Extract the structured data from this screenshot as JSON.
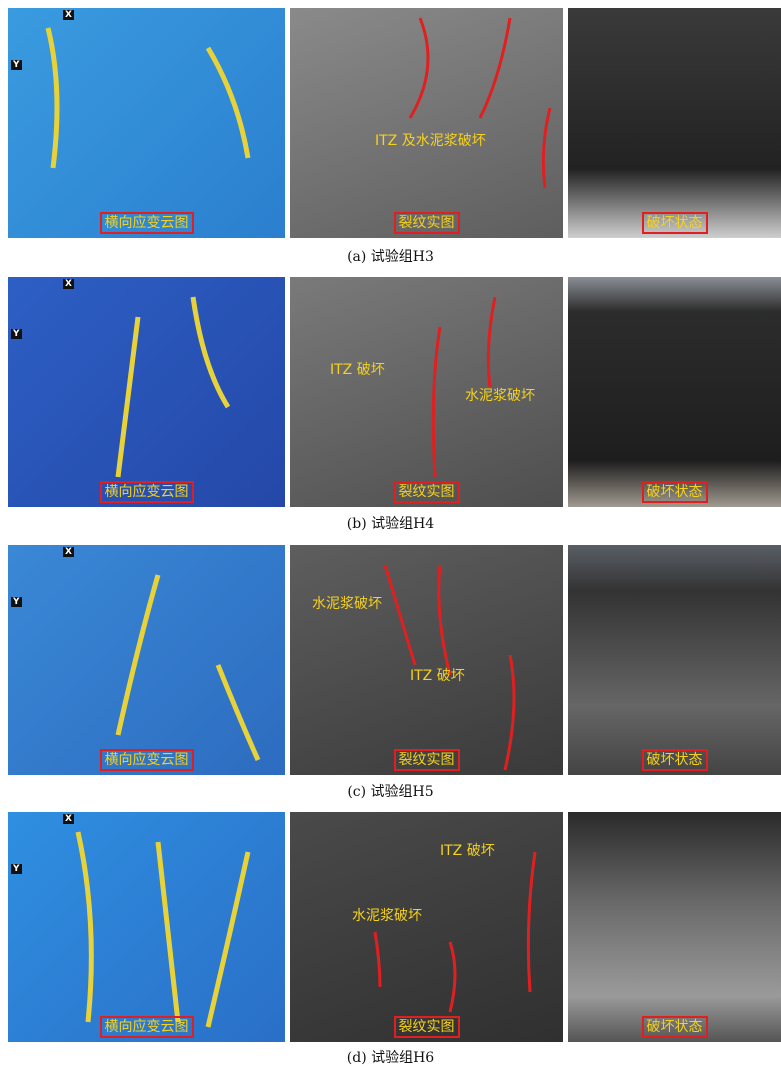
{
  "figure": {
    "rows": [
      {
        "caption": "(a) 试验组H3",
        "panels": [
          {
            "label": "横向应变云图",
            "axes": [
              "X",
              "Y"
            ]
          },
          {
            "label": "裂纹实图",
            "annotations": [
              "ITZ 及水泥浆破坏"
            ]
          },
          {
            "label": "破坏状态"
          }
        ]
      },
      {
        "caption": "(b) 试验组H4",
        "panels": [
          {
            "label": "横向应变云图",
            "axes": [
              "X",
              "Y"
            ]
          },
          {
            "label": "裂纹实图",
            "annotations": [
              "ITZ 破坏",
              "水泥浆破坏"
            ]
          },
          {
            "label": "破坏状态"
          }
        ]
      },
      {
        "caption": "(c) 试验组H5",
        "panels": [
          {
            "label": "横向应变云图",
            "axes": [
              "X",
              "Y"
            ]
          },
          {
            "label": "裂纹实图",
            "annotations": [
              "水泥浆破坏",
              "ITZ 破坏"
            ]
          },
          {
            "label": "破坏状态"
          }
        ]
      },
      {
        "caption": "(d) 试验组H6",
        "panels": [
          {
            "label": "横向应变云图",
            "axes": [
              "X",
              "Y"
            ]
          },
          {
            "label": "裂纹实图",
            "annotations": [
              "ITZ 破坏",
              "水泥浆破坏"
            ]
          },
          {
            "label": "破坏状态"
          }
        ]
      }
    ]
  }
}
